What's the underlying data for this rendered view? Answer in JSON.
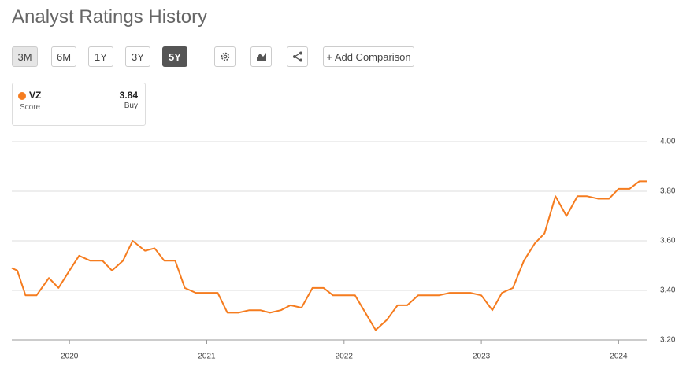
{
  "header": {
    "title": "Analyst Ratings History"
  },
  "controls": {
    "ranges": [
      "3M",
      "6M",
      "1Y",
      "3Y",
      "5Y"
    ],
    "add_comparison": "+ Add Comparison"
  },
  "legend": {
    "symbol": "VZ",
    "label": "Score",
    "value": "3.84",
    "rating": "Buy"
  },
  "chart_data": {
    "type": "line",
    "x": [
      2019.58,
      2019.62,
      2019.68,
      2019.76,
      2019.85,
      2019.92,
      2020.0,
      2020.07,
      2020.15,
      2020.24,
      2020.31,
      2020.39,
      2020.46,
      2020.55,
      2020.62,
      2020.69,
      2020.77,
      2020.84,
      2020.92,
      2021.0,
      2021.08,
      2021.15,
      2021.23,
      2021.31,
      2021.39,
      2021.46,
      2021.54,
      2021.61,
      2021.69,
      2021.77,
      2021.85,
      2021.92,
      2022.0,
      2022.08,
      2022.23,
      2022.31,
      2022.39,
      2022.46,
      2022.54,
      2022.62,
      2022.69,
      2022.77,
      2022.85,
      2022.92,
      2023.0,
      2023.08,
      2023.15,
      2023.23,
      2023.31,
      2023.39,
      2023.46,
      2023.54,
      2023.62,
      2023.7,
      2023.77,
      2023.85,
      2023.93,
      2024.0,
      2024.08,
      2024.15,
      2024.21
    ],
    "series": [
      {
        "name": "VZ",
        "color": "#f57c1f",
        "values": [
          3.49,
          3.48,
          3.38,
          3.38,
          3.45,
          3.41,
          3.48,
          3.54,
          3.52,
          3.52,
          3.48,
          3.52,
          3.6,
          3.56,
          3.57,
          3.52,
          3.52,
          3.41,
          3.39,
          3.39,
          3.39,
          3.31,
          3.31,
          3.32,
          3.32,
          3.31,
          3.32,
          3.34,
          3.33,
          3.41,
          3.41,
          3.38,
          3.38,
          3.38,
          3.24,
          3.28,
          3.34,
          3.34,
          3.38,
          3.38,
          3.38,
          3.39,
          3.39,
          3.39,
          3.38,
          3.32,
          3.39,
          3.41,
          3.52,
          3.59,
          3.63,
          3.78,
          3.7,
          3.78,
          3.78,
          3.77,
          3.77,
          3.81,
          3.81,
          3.84,
          3.84
        ]
      }
    ],
    "xlim": [
      2019.58,
      2024.21
    ],
    "xticks": [
      2020,
      2021,
      2022,
      2023,
      2024
    ],
    "ylim": [
      3.2,
      4.0
    ],
    "yticks": [
      {
        "value": 3.2,
        "label": "3.20"
      },
      {
        "value": 3.4,
        "label": "3.40"
      },
      {
        "value": 3.6,
        "label": "3.60"
      },
      {
        "value": 3.8,
        "label": "3.80"
      },
      {
        "value": 4.0,
        "label": "4.00"
      }
    ],
    "grid": true,
    "y_axis_side": "right"
  }
}
